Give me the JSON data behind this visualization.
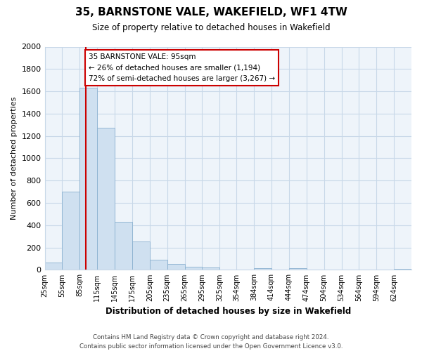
{
  "title": "35, BARNSTONE VALE, WAKEFIELD, WF1 4TW",
  "subtitle": "Size of property relative to detached houses in Wakefield",
  "xlabel": "Distribution of detached houses by size in Wakefield",
  "ylabel": "Number of detached properties",
  "annotation_title": "35 BARNSTONE VALE: 95sqm",
  "annotation_line1": "← 26% of detached houses are smaller (1,194)",
  "annotation_line2": "72% of semi-detached houses are larger (3,267) →",
  "footer_line1": "Contains HM Land Registry data © Crown copyright and database right 2024.",
  "footer_line2": "Contains public sector information licensed under the Open Government Licence v3.0.",
  "bar_labels": [
    "25sqm",
    "55sqm",
    "85sqm",
    "115sqm",
    "145sqm",
    "175sqm",
    "205sqm",
    "235sqm",
    "265sqm",
    "295sqm",
    "325sqm",
    "354sqm",
    "384sqm",
    "414sqm",
    "444sqm",
    "474sqm",
    "504sqm",
    "534sqm",
    "564sqm",
    "594sqm",
    "624sqm"
  ],
  "bar_values": [
    65,
    700,
    1630,
    1275,
    430,
    255,
    90,
    52,
    30,
    20,
    0,
    0,
    15,
    0,
    15,
    0,
    0,
    0,
    0,
    0,
    10
  ],
  "bar_color": "#cfe0f0",
  "bar_edge_color": "#8ab0d0",
  "grid_color": "#c8d8e8",
  "redline_x": 95,
  "ylim": [
    0,
    2000
  ],
  "yticks": [
    0,
    200,
    400,
    600,
    800,
    1000,
    1200,
    1400,
    1600,
    1800,
    2000
  ],
  "annotation_box_color": "#ffffff",
  "annotation_box_edge": "#cc0000",
  "redline_color": "#cc0000",
  "bg_color": "#ffffff",
  "plot_bg_color": "#eef4fa"
}
